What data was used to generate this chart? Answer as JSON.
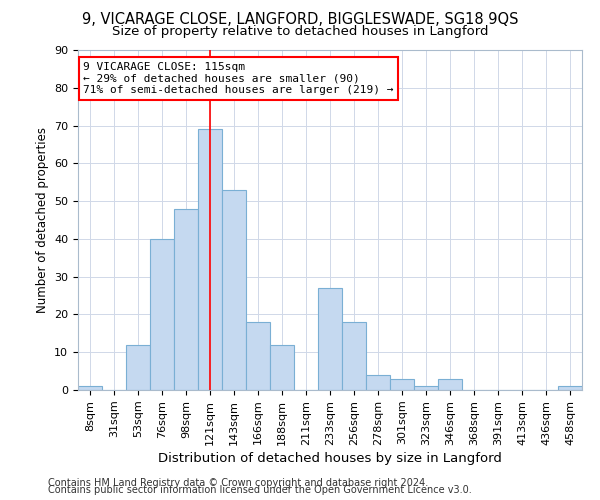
{
  "title1": "9, VICARAGE CLOSE, LANGFORD, BIGGLESWADE, SG18 9QS",
  "title2": "Size of property relative to detached houses in Langford",
  "xlabel": "Distribution of detached houses by size in Langford",
  "ylabel": "Number of detached properties",
  "footnote1": "Contains HM Land Registry data © Crown copyright and database right 2024.",
  "footnote2": "Contains public sector information licensed under the Open Government Licence v3.0.",
  "bin_labels": [
    "8sqm",
    "31sqm",
    "53sqm",
    "76sqm",
    "98sqm",
    "121sqm",
    "143sqm",
    "166sqm",
    "188sqm",
    "211sqm",
    "233sqm",
    "256sqm",
    "278sqm",
    "301sqm",
    "323sqm",
    "346sqm",
    "368sqm",
    "391sqm",
    "413sqm",
    "436sqm",
    "458sqm"
  ],
  "bar_values": [
    1,
    0,
    12,
    40,
    48,
    69,
    53,
    18,
    12,
    0,
    27,
    18,
    4,
    3,
    1,
    3,
    0,
    0,
    0,
    0,
    1
  ],
  "bar_color": "#c5d9f0",
  "bar_edge_color": "#7aafd4",
  "red_line_x": 5,
  "annotation_line1": "9 VICARAGE CLOSE: 115sqm",
  "annotation_line2": "← 29% of detached houses are smaller (90)",
  "annotation_line3": "71% of semi-detached houses are larger (219) →",
  "annotation_box_color": "white",
  "annotation_box_edge_color": "red",
  "ylim": [
    0,
    90
  ],
  "yticks": [
    0,
    10,
    20,
    30,
    40,
    50,
    60,
    70,
    80,
    90
  ],
  "title1_fontsize": 10.5,
  "title2_fontsize": 9.5,
  "xlabel_fontsize": 9.5,
  "ylabel_fontsize": 8.5,
  "tick_fontsize": 8,
  "annotation_fontsize": 8,
  "footnote_fontsize": 7
}
